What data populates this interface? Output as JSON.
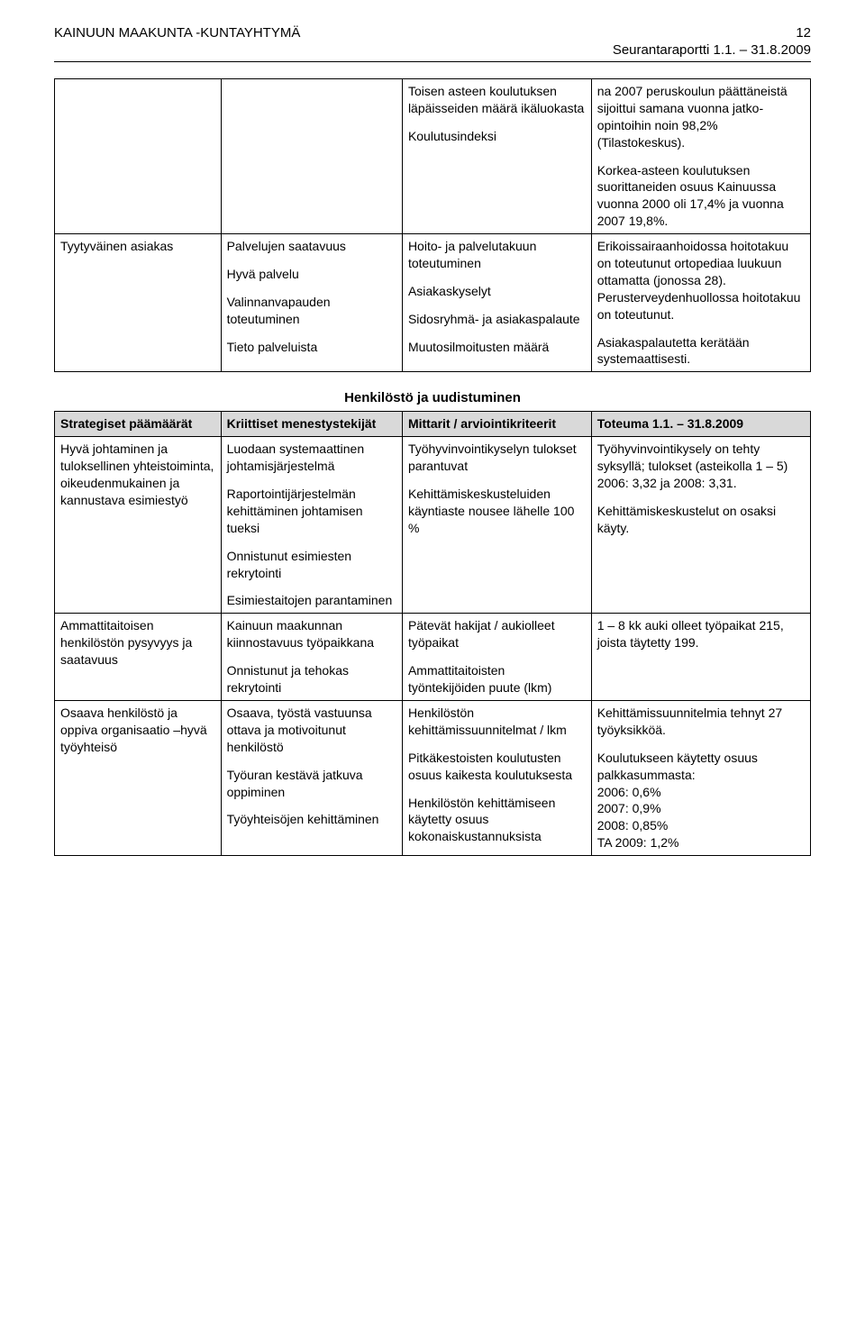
{
  "header": {
    "org": "KAINUUN MAAKUNTA -KUNTAYHTYMÄ",
    "page_number": "12",
    "subtitle": "Seurantaraportti 1.1. – 31.8.2009"
  },
  "table1": {
    "rows": [
      {
        "c1": "",
        "c2": "",
        "c3_paras": [
          "Toisen asteen koulutuksen läpäisseiden määrä ikäluokasta",
          "Koulutusindeksi"
        ],
        "c4_paras": [
          "na 2007 peruskoulun päättäneistä sijoittui samana vuonna jatko-opintoihin noin 98,2% (Tilastokeskus).",
          "Korkea-asteen koulutuksen suorittaneiden osuus Kainuussa vuonna 2000 oli 17,4% ja vuonna 2007 19,8%."
        ]
      },
      {
        "c1": "Tyytyväinen asiakas",
        "c2_paras": [
          "Palvelujen saatavuus",
          "Hyvä palvelu",
          "Valinnanvapauden toteutuminen",
          "Tieto palveluista"
        ],
        "c3_paras": [
          "Hoito- ja palvelutakuun toteutuminen",
          "Asiakaskyselyt",
          "Sidosryhmä- ja asiakaspalaute",
          "Muutosilmoitusten määrä"
        ],
        "c4_paras": [
          "Erikoissairaanhoidossa hoitotakuu on toteutunut ortopediaa luukuun ottamatta (jonossa 28). Perusterveydenhuollossa hoitotakuu on toteutunut.",
          "Asiakaspalautetta kerätään systemaattisesti."
        ]
      }
    ]
  },
  "section_title": "Henkilöstö ja uudistuminen",
  "table2": {
    "head": {
      "c1": "Strategiset päämäärät",
      "c2": "Kriittiset menestystekijät",
      "c3": "Mittarit / arviointikriteerit",
      "c4": "Toteuma 1.1. – 31.8.2009"
    },
    "rows": [
      {
        "c1": "Hyvä johtaminen ja tuloksellinen yhteistoiminta, oikeudenmukainen ja kannustava esimiestyö",
        "c2_paras": [
          "Luodaan systemaattinen johtamisjärjestelmä",
          "Raportointijärjestelmän kehittäminen johtamisen tueksi",
          "Onnistunut esimiesten rekrytointi",
          "Esimiestaitojen parantaminen"
        ],
        "c3_paras": [
          "Työhyvinvointikyselyn tulokset parantuvat",
          "Kehittämiskeskusteluiden käyntiaste nousee lähelle 100 %"
        ],
        "c4_paras": [
          "Työhyvinvointikysely on tehty syksyllä; tulokset (asteikolla 1 – 5) 2006: 3,32 ja 2008: 3,31.",
          "Kehittämiskeskustelut on osaksi käyty."
        ]
      },
      {
        "c1": "Ammattitaitoisen henkilöstön pysyvyys ja saatavuus",
        "c2_paras": [
          "Kainuun maakunnan kiinnostavuus työpaikkana",
          "Onnistunut ja tehokas rekrytointi"
        ],
        "c3_paras": [
          "Pätevät hakijat / aukiolleet työpaikat",
          "Ammattitaitoisten työntekijöiden puute (lkm)"
        ],
        "c4_paras": [
          "1 – 8 kk auki olleet työpaikat 215, joista täytetty 199."
        ]
      },
      {
        "c1": "Osaava henkilöstö ja oppiva organisaatio –hyvä työyhteisö",
        "c2_paras": [
          "Osaava, työstä vastuunsa ottava ja motivoitunut henkilöstö",
          "Työuran kestävä jatkuva oppiminen",
          "Työyhteisöjen kehittäminen"
        ],
        "c3_paras": [
          "Henkilöstön kehittämissuunnitelmat / lkm",
          "Pitkäkestoisten koulutusten osuus kaikesta koulutuksesta",
          "Henkilöstön kehittämiseen käytetty osuus kokonaiskustannuksista"
        ],
        "c4_paras": [
          "Kehittämissuunnitelmia tehnyt 27 työyksikköä.",
          "Koulutukseen käytetty osuus palkkasummasta:\n2006: 0,6%\n2007: 0,9%\n2008: 0,85%\nTA 2009: 1,2%"
        ]
      }
    ]
  },
  "colors": {
    "background": "#ffffff",
    "text": "#000000",
    "border": "#000000",
    "header_fill": "#d9d9d9"
  }
}
